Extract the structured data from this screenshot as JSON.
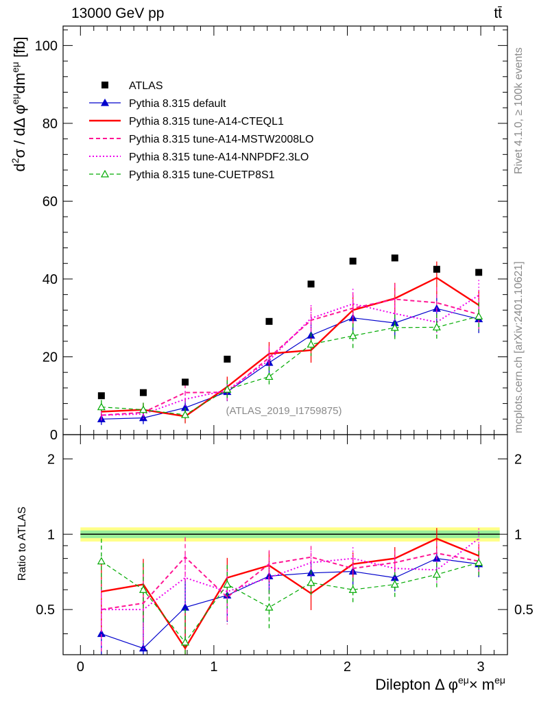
{
  "header": {
    "left": "13000 GeV pp",
    "right": "tt̄"
  },
  "side_labels": {
    "rivet": "Rivet 4.1.0, ≥ 100k events",
    "mcplots": "mcplots.cern.ch [arXiv:2401.10621]"
  },
  "watermark": "(ATLAS_2019_I1759875)",
  "axes": {
    "main_ylabel": "d²σ / dΔ φ^eμ dm^eμ [fb]",
    "ratio_ylabel": "Ratio to ATLAS",
    "xlabel": "Dilepton Δ φ^eμ × m^eμ"
  },
  "chart_data": {
    "type": "line",
    "title": "13000 GeV pp  tt̄",
    "x": [
      0.157,
      0.471,
      0.785,
      1.1,
      1.414,
      1.728,
      2.042,
      2.356,
      2.67,
      2.985
    ],
    "x_edges": [
      0,
      0.314,
      0.628,
      0.942,
      1.257,
      1.571,
      1.885,
      2.199,
      2.513,
      2.827,
      3.142
    ],
    "xlim": [
      -0.13,
      3.2
    ],
    "ylim": [
      0,
      105
    ],
    "ratio_ylim": [
      0.33,
      2.5
    ],
    "x_ticks": [
      "0",
      "1",
      "2",
      "3"
    ],
    "y_ticks": [
      "0",
      "20",
      "40",
      "60",
      "80",
      "100"
    ],
    "ratio_ticks": [
      "0.5",
      "1",
      "2"
    ],
    "data": {
      "name": "ATLAS",
      "values": [
        10.0,
        10.8,
        13.5,
        19.4,
        29.1,
        38.7,
        44.6,
        45.4,
        42.5,
        41.7
      ],
      "band_inner": [
        0.035,
        0.035,
        0.035,
        0.035,
        0.035,
        0.035,
        0.035,
        0.035,
        0.035,
        0.035
      ],
      "band_outer": [
        0.065,
        0.065,
        0.065,
        0.065,
        0.065,
        0.065,
        0.065,
        0.065,
        0.065,
        0.065
      ]
    },
    "series": [
      {
        "name": "Pythia 8.315 default",
        "color": "#0000cc",
        "style": "solid",
        "width": 1.2,
        "marker": "triangle-filled",
        "values": [
          4.0,
          4.3,
          6.9,
          11.0,
          18.5,
          25.5,
          30.0,
          28.7,
          32.4,
          29.7
        ],
        "errors": [
          1.5,
          1.6,
          2.0,
          2.4,
          2.8,
          3.2,
          3.6,
          3.6,
          3.8,
          3.6
        ],
        "ratio": [
          0.4,
          0.35,
          0.51,
          0.57,
          0.68,
          0.7,
          0.71,
          0.67,
          0.8,
          0.76
        ]
      },
      {
        "name": "Pythia 8.315 tune-A14-CTEQL1",
        "color": "#ff0000",
        "style": "solid",
        "width": 2.4,
        "marker": "none",
        "values": [
          5.9,
          6.4,
          4.7,
          12.3,
          20.8,
          21.7,
          32.0,
          35.0,
          40.3,
          33.3
        ],
        "errors": [
          1.8,
          1.8,
          1.8,
          2.6,
          3.0,
          3.2,
          3.8,
          4.0,
          4.2,
          3.9
        ],
        "ratio": [
          0.59,
          0.63,
          0.35,
          0.67,
          0.75,
          0.58,
          0.76,
          0.8,
          0.96,
          0.82
        ]
      },
      {
        "name": "Pythia 8.315 tune-A14-MSTW2008LO",
        "color": "#ff1493",
        "style": "dashed",
        "width": 2.0,
        "marker": "none",
        "values": [
          5.0,
          5.7,
          10.8,
          10.9,
          19.8,
          29.4,
          32.5,
          34.8,
          33.9,
          30.9
        ],
        "errors": [
          1.6,
          1.7,
          2.2,
          2.4,
          3.0,
          3.4,
          3.8,
          4.0,
          4.0,
          3.8
        ],
        "ratio": [
          0.5,
          0.53,
          0.81,
          0.56,
          0.76,
          0.81,
          0.73,
          0.77,
          0.84,
          0.78
        ]
      },
      {
        "name": "Pythia 8.315 tune-A14-NNPDF2.3LO",
        "color": "#ee00ee",
        "style": "dotted",
        "width": 2.0,
        "marker": "none",
        "values": [
          5.0,
          5.3,
          9.1,
          11.4,
          19.1,
          29.9,
          33.6,
          31.1,
          28.9,
          35.8
        ],
        "errors": [
          1.6,
          1.7,
          2.1,
          2.4,
          3.0,
          3.4,
          3.9,
          3.8,
          3.8,
          4.0
        ],
        "ratio": [
          0.5,
          0.5,
          0.67,
          0.59,
          0.67,
          0.77,
          0.8,
          0.73,
          0.72,
          0.96
        ]
      },
      {
        "name": "Pythia 8.315 tune-CUETP8S1",
        "color": "#00aa00",
        "style": "dashed",
        "width": 1.2,
        "marker": "triangle-open",
        "values": [
          7.1,
          6.4,
          5.1,
          11.6,
          14.9,
          23.2,
          25.4,
          27.5,
          27.6,
          30.4
        ],
        "errors": [
          1.8,
          1.8,
          1.8,
          2.4,
          2.6,
          3.0,
          3.2,
          3.4,
          3.4,
          3.6
        ],
        "ratio": [
          0.78,
          0.6,
          0.37,
          0.63,
          0.51,
          0.64,
          0.6,
          0.63,
          0.69,
          0.77
        ]
      }
    ]
  }
}
